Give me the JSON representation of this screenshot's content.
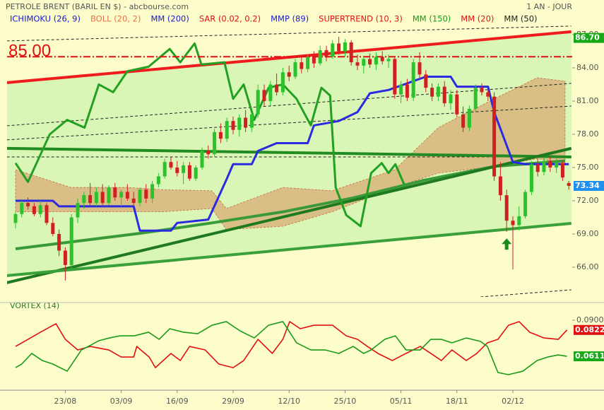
{
  "chart_data": [
    {
      "type": "candlestick",
      "title": "PETROLE BRENT (BARIL EN $) - abcbourse.com",
      "period": "1 AN - JOUR",
      "legend": [
        {
          "name": "ICHIMOKU (26, 9)",
          "color": "#1a1ad0"
        },
        {
          "name": "BOLL (20, 2)",
          "color": "#e8704a"
        },
        {
          "name": "MM (200)",
          "color": "#1a1ad0"
        },
        {
          "name": "SAR (0.02, 0.2)",
          "color": "#e01010"
        },
        {
          "name": "MMP (89)",
          "color": "#1a1ad0"
        },
        {
          "name": "SUPERTREND (10, 3)",
          "color": "#e01010"
        },
        {
          "name": "MM (150)",
          "color": "#1a9a1a"
        },
        {
          "name": "MM (20)",
          "color": "#e01010"
        },
        {
          "name": "MM (50)",
          "color": "#222222"
        }
      ],
      "categories": [
        null,
        null,
        null,
        null,
        null,
        null,
        null,
        null,
        "23/08",
        null,
        null,
        null,
        null,
        null,
        null,
        null,
        null,
        "03/09",
        null,
        null,
        null,
        null,
        null,
        null,
        null,
        null,
        "16/09",
        null,
        null,
        null,
        null,
        null,
        null,
        null,
        null,
        "29/09",
        null,
        null,
        null,
        null,
        null,
        null,
        null,
        null,
        "12/10",
        null,
        null,
        null,
        null,
        null,
        null,
        null,
        null,
        "25/10",
        null,
        null,
        null,
        null,
        null,
        null,
        null,
        null,
        "05/11",
        null,
        null,
        null,
        null,
        null,
        null,
        null,
        null,
        "18/11",
        null,
        null,
        null,
        null,
        null,
        null,
        null,
        null,
        "02/12",
        null,
        null,
        null,
        null,
        null,
        null,
        null,
        null,
        null
      ],
      "open": [
        70.0,
        70.8,
        71.8,
        71.5,
        70.8,
        71.6,
        70.0,
        69.0,
        67.5,
        66.2,
        70.5,
        71.8,
        72.5,
        71.8,
        72.8,
        71.8,
        73.2,
        72.3,
        72.8,
        72.2,
        71.8,
        73.0,
        72.2,
        73.5,
        74.2,
        75.5,
        75.0,
        74.5,
        75.2,
        74.0,
        75.0,
        76.5,
        76.2,
        78.2,
        77.6,
        79.2,
        78.4,
        79.5,
        78.6,
        79.8,
        82.0,
        81.0,
        82.5,
        81.8,
        83.6,
        83.2,
        84.5,
        83.9,
        85.0,
        84.4,
        85.6,
        85.0,
        86.2,
        85.5,
        86.3,
        84.5,
        84.2,
        84.8,
        84.3,
        85.0,
        84.6,
        84.8,
        81.6,
        82.5,
        81.3,
        84.5,
        83.4,
        82.2,
        81.4,
        82.3,
        80.8,
        81.6,
        79.8,
        78.6,
        80.3,
        82.2,
        81.8,
        81.4,
        74.2,
        72.5,
        70.2,
        69.8,
        70.6,
        72.8,
        75.3,
        74.6,
        75.6,
        75.0,
        75.4,
        73.6
      ],
      "high": [
        71.0,
        72.0,
        72.3,
        71.8,
        72.0,
        71.8,
        70.5,
        69.4,
        67.8,
        70.8,
        72.2,
        72.8,
        73.6,
        73.2,
        73.5,
        73.4,
        73.6,
        73.0,
        73.5,
        72.8,
        73.2,
        73.5,
        73.8,
        74.5,
        75.8,
        76.0,
        75.6,
        75.5,
        75.5,
        75.2,
        76.8,
        77.0,
        78.5,
        79.0,
        79.5,
        79.6,
        79.8,
        80.2,
        80.0,
        82.5,
        82.5,
        82.8,
        83.5,
        84.0,
        84.2,
        84.8,
        85.0,
        85.2,
        85.5,
        86.0,
        86.0,
        86.5,
        86.8,
        86.6,
        86.5,
        85.2,
        85.0,
        85.3,
        85.4,
        85.5,
        85.2,
        85.0,
        82.8,
        83.0,
        84.8,
        85.4,
        83.8,
        82.6,
        82.6,
        82.8,
        82.0,
        82.0,
        80.5,
        80.6,
        82.5,
        82.6,
        82.0,
        81.8,
        75.5,
        73.0,
        70.6,
        71.5,
        73.0,
        75.6,
        75.8,
        75.9,
        76.0,
        75.8,
        75.6,
        73.8
      ],
      "low": [
        69.5,
        70.5,
        71.2,
        70.6,
        70.5,
        69.8,
        68.8,
        67.0,
        64.8,
        65.8,
        70.0,
        71.3,
        71.5,
        71.5,
        71.5,
        71.6,
        72.0,
        71.5,
        72.0,
        71.5,
        71.5,
        71.8,
        71.8,
        73.2,
        74.0,
        74.8,
        74.2,
        73.5,
        73.8,
        73.8,
        74.8,
        75.8,
        76.0,
        77.2,
        77.3,
        78.0,
        77.8,
        78.2,
        78.2,
        79.5,
        80.5,
        80.6,
        81.5,
        81.5,
        82.8,
        83.0,
        83.5,
        83.6,
        84.0,
        84.2,
        84.6,
        84.8,
        85.2,
        85.0,
        84.2,
        83.8,
        83.5,
        84.0,
        83.8,
        84.3,
        84.0,
        81.2,
        80.8,
        81.0,
        81.0,
        83.0,
        81.8,
        81.0,
        81.0,
        80.5,
        80.2,
        79.5,
        78.2,
        78.3,
        80.0,
        81.5,
        81.0,
        73.8,
        72.0,
        69.2,
        65.8,
        69.3,
        70.4,
        72.5,
        74.2,
        74.3,
        74.6,
        74.5,
        73.8,
        73.0
      ],
      "close": [
        70.8,
        71.8,
        71.5,
        70.8,
        71.6,
        70.0,
        69.0,
        67.5,
        66.2,
        70.5,
        71.8,
        72.5,
        71.8,
        72.8,
        71.8,
        73.2,
        72.3,
        72.8,
        72.2,
        71.8,
        73.0,
        72.2,
        73.5,
        74.2,
        75.5,
        75.0,
        74.5,
        75.2,
        74.0,
        75.0,
        76.5,
        76.2,
        78.2,
        77.6,
        79.2,
        78.4,
        79.5,
        78.6,
        79.8,
        82.0,
        81.0,
        82.5,
        81.8,
        83.6,
        83.2,
        84.5,
        83.9,
        85.0,
        84.4,
        85.6,
        85.0,
        86.2,
        85.5,
        86.3,
        84.5,
        84.2,
        84.8,
        84.3,
        85.0,
        84.6,
        84.8,
        81.6,
        82.5,
        81.3,
        84.5,
        83.4,
        82.2,
        81.4,
        82.3,
        80.8,
        81.6,
        79.8,
        78.6,
        80.3,
        82.2,
        81.8,
        81.4,
        74.2,
        72.5,
        70.2,
        69.8,
        70.6,
        72.8,
        75.3,
        74.6,
        75.6,
        75.0,
        75.4,
        74.1,
        73.34
      ],
      "up_color": "#2bc22b",
      "down_color": "#d02020",
      "ylim": [
        63.32,
        88.72
      ],
      "yticks": [
        {
          "value": 66,
          "label": "66.00"
        },
        {
          "value": 69,
          "label": "69.00"
        },
        {
          "value": 72,
          "label": "72.00"
        },
        {
          "value": 75,
          "label": "75.00"
        },
        {
          "value": 78,
          "label": "78.00"
        },
        {
          "value": 81,
          "label": "81.00"
        },
        {
          "value": 84,
          "label": "84.00"
        },
        {
          "value": 87,
          "label": "87.00"
        }
      ],
      "channel": {
        "x": [
          -1.4,
          89.4
        ],
        "upper": [
          82.66,
          87.26
        ],
        "lower": [
          65.24,
          69.96
        ],
        "color": "#d6f5b4"
      },
      "cloud": {
        "x": [
          0,
          8.9,
          18,
          23.6,
          31.6,
          33.9,
          43,
          50.9,
          61,
          68,
          77,
          83.9,
          88.4
        ],
        "upper": [
          74.8,
          73.2,
          73.2,
          73.0,
          72.9,
          71.3,
          73.2,
          72.9,
          74.8,
          78.6,
          81.2,
          83.1,
          82.8
        ],
        "lower": [
          71.0,
          71.0,
          71.0,
          71.0,
          71.3,
          69.4,
          69.7,
          71.0,
          73.2,
          74.5,
          75.1,
          75.8,
          75.4
        ],
        "color": "#d9a870"
      },
      "lines": [
        {
          "x": [
            -1.4,
            89.4
          ],
          "values": [
            86.43,
            87.77
          ],
          "color": "#222222",
          "width": 1,
          "dashed": true
        },
        {
          "x": [
            -1.4,
            89.4
          ],
          "values": [
            78.77,
            82.6
          ],
          "color": "#222222",
          "width": 1,
          "dashed": true
        },
        {
          "x": [
            -1.4,
            89.4
          ],
          "values": [
            77.5,
            80.55
          ],
          "color": "#222222",
          "width": 1,
          "dashed": true
        },
        {
          "x": [
            -1.4,
            89.4
          ],
          "values": [
            75.96,
            75.96
          ],
          "color": "#222222",
          "width": 1,
          "dashed": true
        },
        {
          "x": [
            74.8,
            89.4
          ],
          "values": [
            63.32,
            63.96
          ],
          "color": "#222222",
          "width": 1,
          "dashed": true
        },
        {
          "x": [
            0,
            20.2,
            31.6,
            43,
            54.3,
            65.7,
            77,
            88.4
          ],
          "values": [
            67.66,
            69.07,
            70.0,
            71.0,
            72.26,
            73.85,
            75.1,
            75.6
          ],
          "color": "#3a9a3a",
          "width": 4,
          "dashed": false
        },
        {
          "x": [
            -1.4,
            89.4
          ],
          "values": [
            76.73,
            75.96
          ],
          "color": "#228b22",
          "width": 4,
          "dashed": false
        },
        {
          "x": [
            -1.4,
            89.4
          ],
          "values": [
            64.6,
            76.73
          ],
          "color": "#1f7a1f",
          "width": 4,
          "dashed": false
        },
        {
          "x": [
            -1.4,
            89.4
          ],
          "values": [
            65.24,
            69.96
          ],
          "color": "#3aa03a",
          "width": 4,
          "dashed": false
        },
        {
          "x": [
            -1.4,
            89.4
          ],
          "values": [
            82.66,
            87.26
          ],
          "color": "#ee1c1c",
          "width": 4,
          "dashed": false
        },
        {
          "x": [
            0,
            6,
            7,
            19,
            20,
            25,
            26,
            31,
            34,
            35,
            38,
            39,
            42,
            47,
            48,
            52,
            55,
            57,
            60,
            66,
            70,
            71,
            76,
            77,
            80,
            82,
            89
          ],
          "values": [
            72,
            72,
            71.5,
            71.5,
            69.3,
            69.3,
            70,
            70.3,
            74,
            75.3,
            75.3,
            76.5,
            77.2,
            77.2,
            78.8,
            79.2,
            80,
            81.7,
            82,
            83.2,
            83.2,
            82.3,
            82.3,
            80,
            75.5,
            75.3,
            75.3
          ],
          "color": "#2a2ae0",
          "width": 3,
          "dashed": false
        },
        {
          "x": [
            0,
            2,
            5.5,
            8.3,
            11.1,
            13.4,
            15.7,
            18,
            21.4,
            24.8,
            26.5,
            28.8,
            29.9,
            33.6,
            35,
            36.7,
            38.4,
            40.7,
            43,
            45.2,
            47.5,
            49.2,
            50.6,
            51.5,
            53.2,
            55.5,
            57.2,
            58.9,
            60,
            61.1,
            62.5
          ],
          "values": [
            75.4,
            73.7,
            78,
            79.3,
            78.6,
            82.5,
            81.8,
            83.7,
            84.1,
            85.7,
            84.5,
            86.2,
            84.3,
            84.5,
            81.2,
            82.5,
            79.3,
            82.2,
            82.5,
            81.2,
            78.8,
            82.2,
            81.5,
            73.2,
            70.7,
            69.7,
            74.5,
            75.4,
            74.5,
            75.3,
            73.5
          ],
          "color": "#22a022",
          "width": 3,
          "dashed": false
        }
      ],
      "hline": {
        "value": 85,
        "label": "85.00",
        "color": "#e01010"
      },
      "markers": [
        {
          "value": 86.7,
          "label": "86.70",
          "color": "#18a818"
        },
        {
          "value": 73.34,
          "label": "73.34",
          "color": "#2090ee"
        }
      ],
      "arrow": {
        "x": 79,
        "value": 68.6,
        "color": "#1a8a1a"
      }
    },
    {
      "type": "line",
      "title": "VORTEX (14)",
      "ylim": [
        0.0362,
        0.0985
      ],
      "yticks": [
        {
          "value": 0.09,
          "label": "0.0900"
        }
      ],
      "lines": [
        {
          "x": [
            0,
            2,
            4,
            6.5,
            8,
            10,
            12,
            15,
            17,
            19,
            19.5,
            21.5,
            22.5,
            25,
            26.5,
            28,
            30.5,
            32.7,
            35,
            36.7,
            39,
            41.3,
            43,
            44.1,
            45.8,
            48,
            51,
            53.2,
            55,
            56.6,
            58.3,
            60.6,
            62.8,
            65.1,
            66.8,
            68.5,
            70.2,
            72.5,
            74.2,
            75.9,
            77.6,
            79.3,
            81,
            82.7,
            85,
            87.3,
            88.7
          ],
          "values": [
            0.069,
            0.0747,
            0.0804,
            0.0872,
            0.0747,
            0.0662,
            0.069,
            0.0662,
            0.0605,
            0.0605,
            0.069,
            0.0605,
            0.052,
            0.0634,
            0.0577,
            0.069,
            0.0662,
            0.0549,
            0.052,
            0.0577,
            0.0747,
            0.0634,
            0.0747,
            0.0889,
            0.0832,
            0.086,
            0.086,
            0.0775,
            0.0747,
            0.069,
            0.0634,
            0.0577,
            0.0634,
            0.069,
            0.0634,
            0.0577,
            0.0662,
            0.0577,
            0.0634,
            0.0719,
            0.0747,
            0.086,
            0.0889,
            0.0804,
            0.0758,
            0.0747,
            0.0822
          ],
          "color": "#e01010",
          "width": 1.6,
          "dashed": false
        },
        {
          "x": [
            0,
            1,
            2.6,
            4.3,
            6,
            8.3,
            10.6,
            11.7,
            13.4,
            15.1,
            16.8,
            19.1,
            21.4,
            23.1,
            24.8,
            27,
            29.3,
            31.6,
            33.9,
            36.1,
            38.4,
            40.7,
            43,
            45.2,
            47.5,
            49.8,
            52,
            54.3,
            56,
            57.2,
            59.4,
            61.1,
            62.8,
            65.1,
            66.8,
            68.5,
            70.2,
            72.5,
            74.8,
            75.9,
            77.6,
            79.3,
            81.6,
            83.9,
            85.6,
            87.3,
            88.7
          ],
          "values": [
            0.052,
            0.0549,
            0.0634,
            0.0577,
            0.0549,
            0.0492,
            0.0662,
            0.069,
            0.0736,
            0.0758,
            0.0775,
            0.0775,
            0.0804,
            0.0747,
            0.0832,
            0.0804,
            0.0792,
            0.086,
            0.0889,
            0.0815,
            0.0758,
            0.086,
            0.0889,
            0.0719,
            0.0662,
            0.0662,
            0.0634,
            0.069,
            0.0634,
            0.0662,
            0.0747,
            0.0775,
            0.0662,
            0.0662,
            0.0747,
            0.0747,
            0.0719,
            0.0758,
            0.073,
            0.069,
            0.0481,
            0.0464,
            0.0492,
            0.0577,
            0.0605,
            0.0622,
            0.0611
          ],
          "color": "#1a9a1a",
          "width": 1.6,
          "dashed": false
        }
      ],
      "markers": [
        {
          "value": 0.0822,
          "label": "0.0822",
          "color": "#e01010"
        },
        {
          "value": 0.0611,
          "label": "0.0611",
          "color": "#18a818"
        }
      ]
    }
  ]
}
